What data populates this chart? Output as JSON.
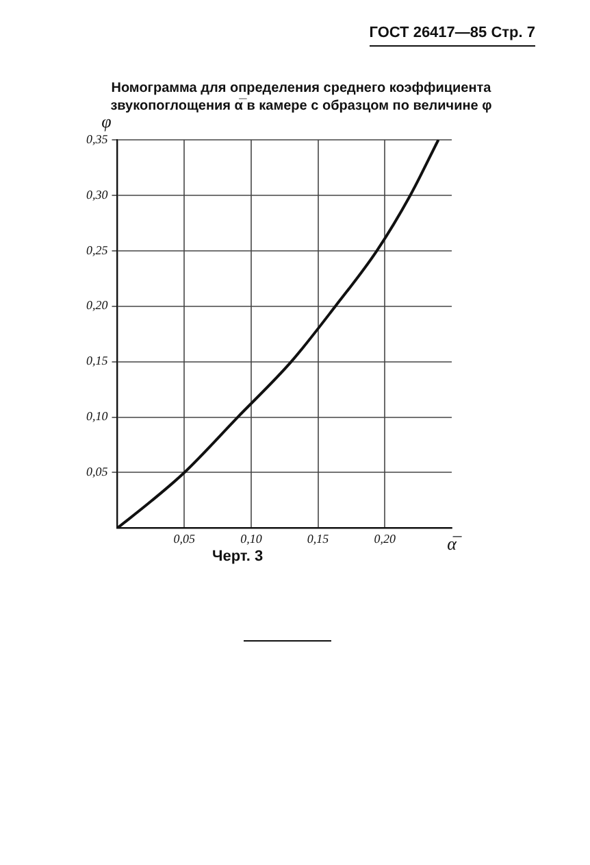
{
  "chart_data": {
    "type": "line",
    "title": "Номограмма для определения среднего коэффициента звукопоглощения α̅ в камере с образцом по величине φ",
    "xlabel": "α̅",
    "ylabel": "φ",
    "annotations": [
      "ГОСТ 26417—85 Стр. 7",
      "Черт. 3"
    ],
    "series": [
      {
        "color": "#111111",
        "x": [
          0,
          0.025,
          0.05,
          0.09,
          0.13,
          0.163,
          0.194,
          0.219,
          0.24
        ],
        "values": [
          0,
          0.024,
          0.05,
          0.1,
          0.15,
          0.2,
          0.25,
          0.3,
          0.35
        ]
      }
    ],
    "xlim": [
      0,
      0.25
    ],
    "ylim": [
      0,
      0.35
    ],
    "xticks": [
      {
        "value": 0.05,
        "label": "0,05"
      },
      {
        "value": 0.1,
        "label": "0,10"
      },
      {
        "value": 0.15,
        "label": "0,15"
      },
      {
        "value": 0.2,
        "label": "0,20"
      }
    ],
    "yticks": [
      {
        "value": 0.05,
        "label": "0,05"
      },
      {
        "value": 0.1,
        "label": "0,10"
      },
      {
        "value": 0.15,
        "label": "0,15"
      },
      {
        "value": 0.2,
        "label": "0,20"
      },
      {
        "value": 0.25,
        "label": "0,25"
      },
      {
        "value": 0.3,
        "label": "0,30"
      },
      {
        "value": 0.35,
        "label": "0,35"
      }
    ],
    "grid": true,
    "legend": false,
    "marker": "none",
    "line_style": "solid"
  }
}
